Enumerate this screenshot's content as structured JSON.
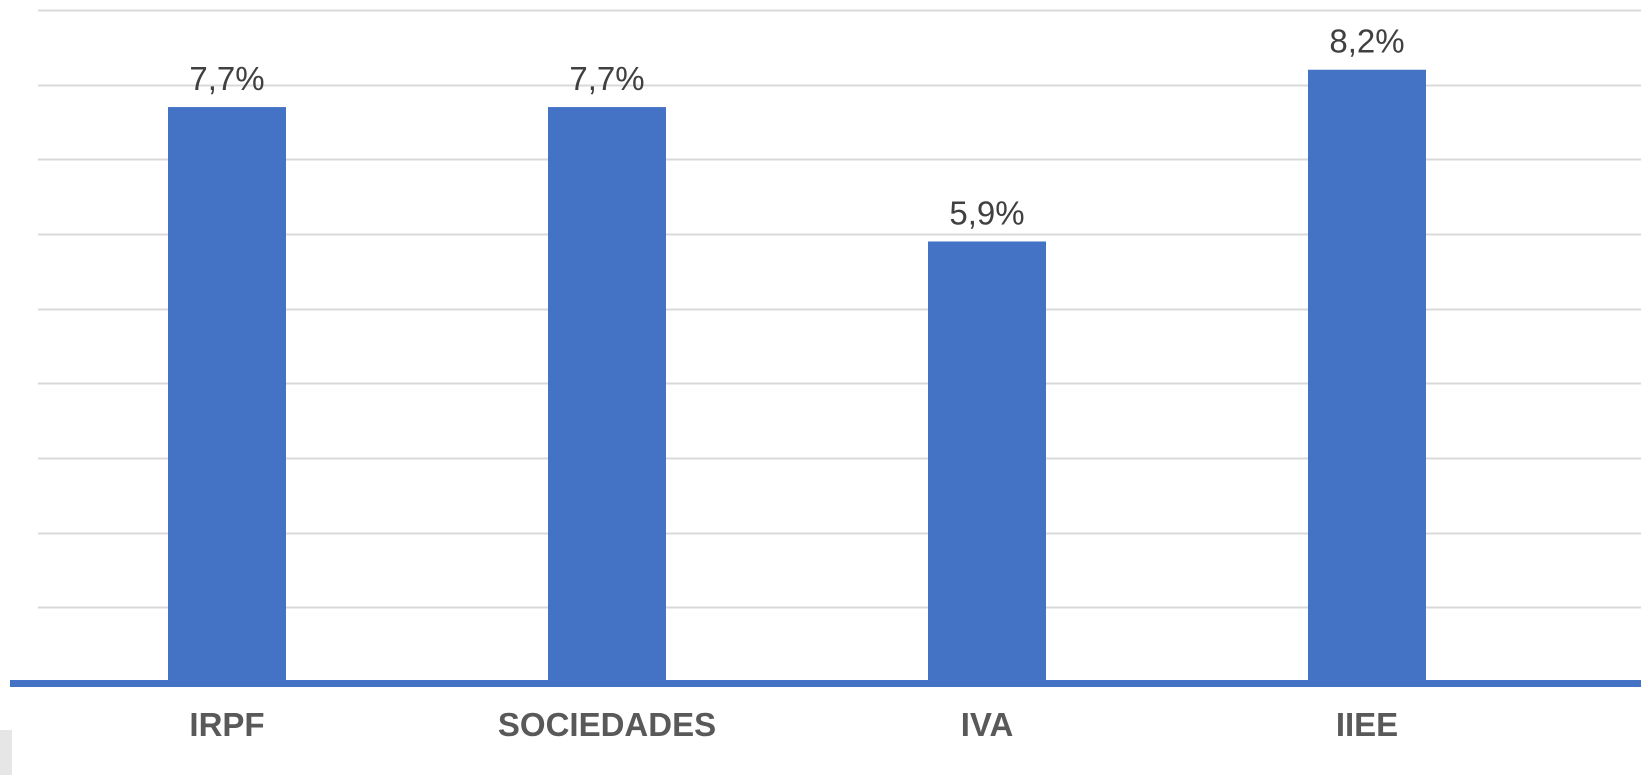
{
  "chart_data": {
    "type": "bar",
    "categories": [
      "IRPF",
      "SOCIEDADES",
      "IVA",
      "IIEE"
    ],
    "values": [
      7.7,
      7.7,
      5.9,
      8.2
    ],
    "value_labels": [
      "7,7%",
      "7,7%",
      "5,9%",
      "8,2%"
    ],
    "title": "",
    "xlabel": "",
    "ylabel": "",
    "ylim": [
      0,
      9
    ],
    "y_tick_step": 1,
    "y_tick_labels_visible": false,
    "grid": true,
    "legend": "none",
    "colors": {
      "bar": "#4472C4",
      "axis": "#4472C4",
      "grid": "#D9D9D9",
      "category_text": "#595959",
      "value_text": "#404040"
    }
  }
}
